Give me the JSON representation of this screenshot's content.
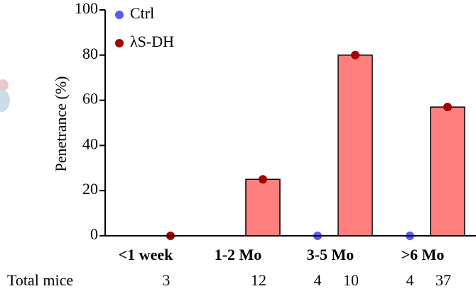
{
  "chart_data": {
    "type": "bar",
    "ylabel": "Penetrance (%)",
    "categories": [
      "<1 week",
      "1-2 Mo",
      "3-5 Mo",
      ">6 Mo"
    ],
    "series": [
      {
        "name": "Ctrl",
        "color": "#5b5bf2",
        "values": [
          null,
          null,
          0,
          0
        ],
        "counts": [
          null,
          null,
          4,
          4
        ]
      },
      {
        "name": "λS-DH",
        "color": "#a30000",
        "bar_color": "#ff7f7f",
        "values": [
          0,
          25,
          80,
          57
        ],
        "counts": [
          3,
          12,
          10,
          37
        ]
      }
    ],
    "counts_label": "Total mice",
    "ylim": [
      0,
      100
    ],
    "yticks": [
      0,
      20,
      40,
      60,
      80,
      100
    ]
  }
}
